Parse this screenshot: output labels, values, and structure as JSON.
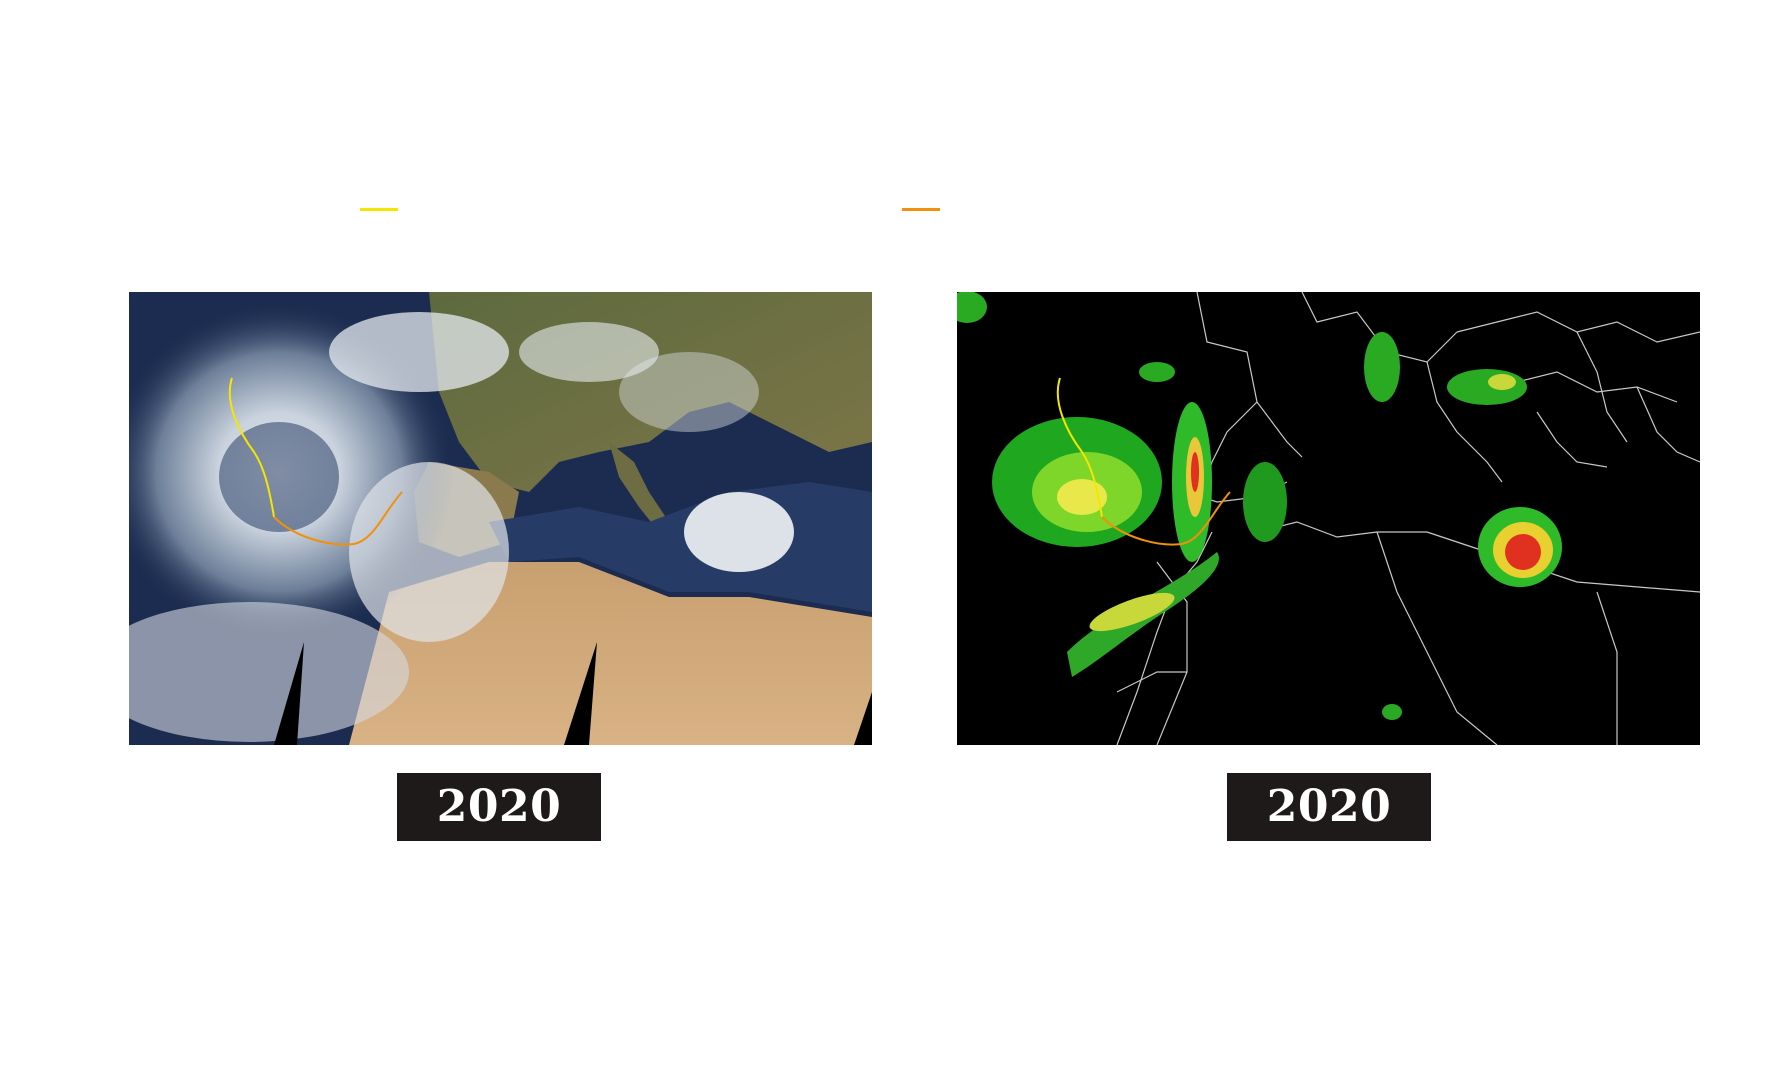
{
  "legend": {
    "items": [
      {
        "color": "#f5e600"
      },
      {
        "color": "#f0900c"
      }
    ]
  },
  "panels": [
    {
      "year": "2020"
    },
    {
      "year": "2020"
    }
  ],
  "track_colors": {
    "primary": "#f5e600",
    "secondary": "#f0900c"
  }
}
